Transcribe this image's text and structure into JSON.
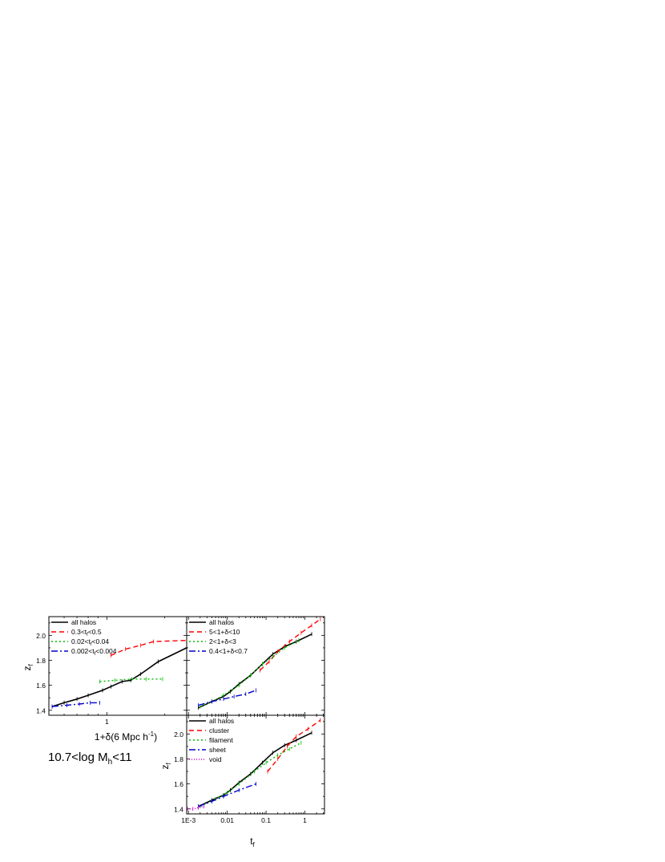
{
  "figure": {
    "mass_label": "10.7<log M",
    "mass_sub": "h",
    "mass_tail": "<11"
  },
  "chart_data": [
    {
      "type": "line",
      "panel": "top-left",
      "xscale": "log",
      "xlim": [
        0.5,
        2.6
      ],
      "ylim": [
        1.36,
        2.15
      ],
      "xticks": [
        {
          "v": 1,
          "label": "1"
        }
      ],
      "yticks": [
        {
          "v": 1.4,
          "label": "1.4"
        },
        {
          "v": 1.6,
          "label": "1.6"
        },
        {
          "v": 1.8,
          "label": "1.8"
        },
        {
          "v": 2.0,
          "label": "2.0"
        }
      ],
      "xlabel_parts": [
        "1+δ(6 Mpc h",
        "-1",
        ")"
      ],
      "ylabel_parts": [
        "z",
        "f"
      ],
      "legend_position": "top-left",
      "series": [
        {
          "name": "all halos",
          "color": "#000000",
          "dash": "",
          "width": 1.6,
          "x": [
            0.52,
            0.6,
            0.7,
            0.8,
            0.95,
            1.05,
            1.2,
            1.33,
            1.5,
            1.85,
            2.6
          ],
          "y": [
            1.43,
            1.46,
            1.49,
            1.52,
            1.56,
            1.59,
            1.63,
            1.64,
            1.69,
            1.79,
            1.9
          ]
        },
        {
          "name": "0.3<t|f|<0.5",
          "color": "#ff0000",
          "dash": "6,4",
          "width": 1.4,
          "x": [
            1.05,
            1.25,
            1.5,
            1.75,
            2.6
          ],
          "y": [
            1.84,
            1.89,
            1.92,
            1.95,
            1.96
          ]
        },
        {
          "name": "0.02<t|f|<0.04",
          "color": "#00bb00",
          "dash": "2,3",
          "width": 1.4,
          "x": [
            0.92,
            1.1,
            1.35,
            1.6,
            1.95
          ],
          "y": [
            1.63,
            1.64,
            1.65,
            1.65,
            1.65
          ]
        },
        {
          "name": "0.002<t|f|<0.004",
          "color": "#0000cc",
          "dash": "8,3,2,3",
          "width": 1.4,
          "x": [
            0.52,
            0.62,
            0.72,
            0.82,
            0.92
          ],
          "y": [
            1.43,
            1.44,
            1.45,
            1.46,
            1.46
          ]
        }
      ]
    },
    {
      "type": "line",
      "panel": "top-right",
      "xscale": "log",
      "xlim": [
        0.0009,
        3.2
      ],
      "ylim": [
        1.36,
        2.15
      ],
      "xticks": [],
      "yticks": [],
      "legend_position": "top-left",
      "series": [
        {
          "name": "all halos",
          "color": "#000000",
          "dash": "",
          "width": 1.6,
          "x": [
            0.0018,
            0.004,
            0.008,
            0.012,
            0.02,
            0.04,
            0.08,
            0.15,
            0.3,
            0.6,
            1.5
          ],
          "y": [
            1.42,
            1.47,
            1.51,
            1.55,
            1.61,
            1.68,
            1.77,
            1.85,
            1.91,
            1.95,
            2.01
          ]
        },
        {
          "name": "5<1+δ<10",
          "color": "#ff0000",
          "dash": "6,4",
          "width": 1.4,
          "x": [
            0.07,
            0.12,
            0.2,
            0.4,
            0.8,
            1.5,
            2.5
          ],
          "y": [
            1.72,
            1.79,
            1.87,
            1.95,
            2.02,
            2.08,
            2.13
          ]
        },
        {
          "name": "2<1+δ<3",
          "color": "#00bb00",
          "dash": "2,3",
          "width": 1.4,
          "x": [
            0.002,
            0.004,
            0.008,
            0.02,
            0.04,
            0.08,
            0.15,
            0.3,
            0.7
          ],
          "y": [
            1.43,
            1.47,
            1.52,
            1.6,
            1.68,
            1.77,
            1.83,
            1.9,
            1.96
          ]
        },
        {
          "name": "0.4<1+δ<0.7",
          "color": "#0000cc",
          "dash": "8,3,2,3",
          "width": 1.4,
          "x": [
            0.0018,
            0.004,
            0.008,
            0.015,
            0.03,
            0.055
          ],
          "y": [
            1.44,
            1.47,
            1.49,
            1.51,
            1.53,
            1.56
          ]
        }
      ]
    },
    {
      "type": "line",
      "panel": "bottom-right",
      "xscale": "log",
      "xlim": [
        0.0009,
        3.2
      ],
      "ylim": [
        1.36,
        2.15
      ],
      "xticks": [
        {
          "v": 0.001,
          "label": "1E-3"
        },
        {
          "v": 0.01,
          "label": "0.01"
        },
        {
          "v": 0.1,
          "label": "0.1"
        },
        {
          "v": 1,
          "label": "1"
        }
      ],
      "yticks": [
        {
          "v": 1.4,
          "label": "1.4"
        },
        {
          "v": 1.6,
          "label": "1.6"
        },
        {
          "v": 1.8,
          "label": "1.8"
        },
        {
          "v": 2.0,
          "label": "2.0"
        }
      ],
      "xlabel_parts": [
        "t",
        "f"
      ],
      "ylabel_parts": [
        "z",
        "f"
      ],
      "legend_position": "top-left",
      "series": [
        {
          "name": "all halos",
          "color": "#000000",
          "dash": "",
          "width": 1.6,
          "x": [
            0.0018,
            0.004,
            0.008,
            0.012,
            0.02,
            0.04,
            0.08,
            0.15,
            0.3,
            0.6,
            1.5
          ],
          "y": [
            1.42,
            1.47,
            1.51,
            1.55,
            1.61,
            1.68,
            1.77,
            1.85,
            1.91,
            1.95,
            2.01
          ]
        },
        {
          "name": "cluster",
          "color": "#ff0000",
          "dash": "6,4",
          "width": 1.4,
          "x": [
            0.11,
            0.2,
            0.35,
            0.6,
            1.2,
            2.5
          ],
          "y": [
            1.7,
            1.8,
            1.9,
            1.98,
            2.04,
            2.11
          ]
        },
        {
          "name": "filament",
          "color": "#00bb00",
          "dash": "2,3",
          "width": 1.4,
          "x": [
            0.002,
            0.005,
            0.01,
            0.02,
            0.05,
            0.1,
            0.2,
            0.4,
            0.8
          ],
          "y": [
            1.42,
            1.48,
            1.53,
            1.6,
            1.7,
            1.77,
            1.83,
            1.88,
            1.93
          ]
        },
        {
          "name": "sheet",
          "color": "#0000cc",
          "dash": "8,3,2,3",
          "width": 1.4,
          "x": [
            0.0018,
            0.004,
            0.008,
            0.02,
            0.055
          ],
          "y": [
            1.42,
            1.46,
            1.5,
            1.55,
            1.6
          ]
        },
        {
          "name": "void",
          "color": "#cc00cc",
          "dash": "1,2",
          "width": 1.4,
          "x": [
            0.00095,
            0.0013,
            0.0018,
            0.0025
          ],
          "y": [
            1.4,
            1.4,
            1.41,
            1.42
          ]
        }
      ]
    }
  ]
}
